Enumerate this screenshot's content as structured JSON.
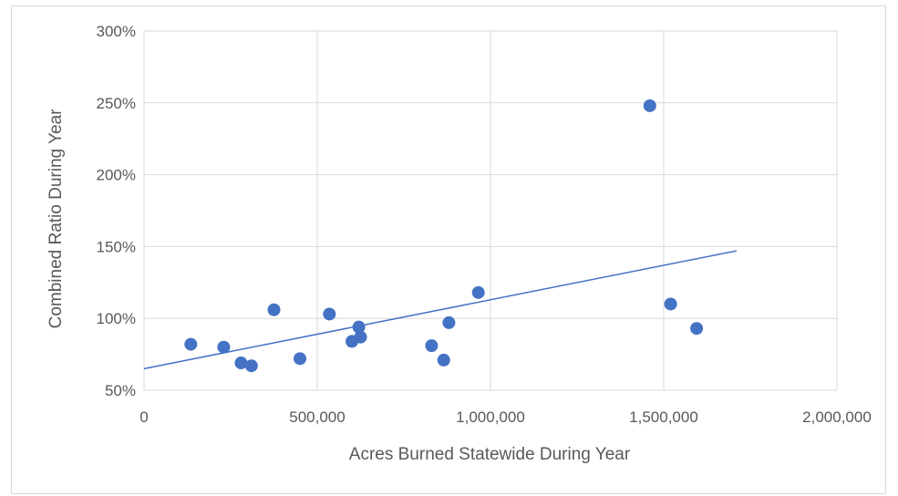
{
  "chart_data": {
    "type": "scatter",
    "xlabel": "Acres Burned Statewide During Year",
    "ylabel": "Combined Ratio During Year",
    "xlim": [
      0,
      2000000
    ],
    "ylim": [
      50,
      300
    ],
    "x_ticks": [
      "0",
      "500,000",
      "1,000,000",
      "1,500,000",
      "2,000,000"
    ],
    "x_tick_values": [
      0,
      500000,
      1000000,
      1500000,
      2000000
    ],
    "y_ticks": [
      "50%",
      "100%",
      "150%",
      "200%",
      "250%",
      "300%"
    ],
    "y_tick_values": [
      50,
      100,
      150,
      200,
      250,
      300
    ],
    "grid": true,
    "point_color": "#4472c4",
    "trendline_color": "#4472c4",
    "series": [
      {
        "points": [
          {
            "x": 135000,
            "y": 82
          },
          {
            "x": 230000,
            "y": 80
          },
          {
            "x": 280000,
            "y": 69
          },
          {
            "x": 310000,
            "y": 67
          },
          {
            "x": 375000,
            "y": 106
          },
          {
            "x": 450000,
            "y": 72
          },
          {
            "x": 535000,
            "y": 103
          },
          {
            "x": 600000,
            "y": 84
          },
          {
            "x": 620000,
            "y": 94
          },
          {
            "x": 625000,
            "y": 87
          },
          {
            "x": 830000,
            "y": 81
          },
          {
            "x": 865000,
            "y": 71
          },
          {
            "x": 880000,
            "y": 97
          },
          {
            "x": 965000,
            "y": 118
          },
          {
            "x": 1460000,
            "y": 248
          },
          {
            "x": 1520000,
            "y": 110
          },
          {
            "x": 1595000,
            "y": 93
          }
        ]
      }
    ],
    "trendline": {
      "x": [
        0,
        1710000
      ],
      "y": [
        65,
        147
      ]
    }
  }
}
